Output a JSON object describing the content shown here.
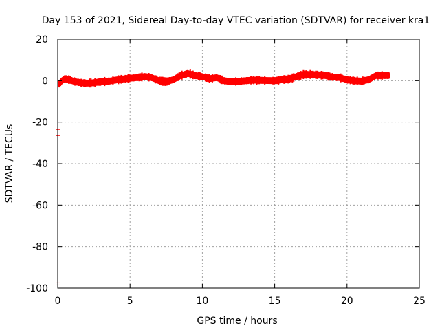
{
  "chart_data": {
    "type": "scatter",
    "title": "Day 153 of 2021, Sidereal Day-to-day VTEC variation (SDTVAR) for receiver kra1",
    "xlabel": "GPS time / hours",
    "ylabel": "SDTVAR / TECUs",
    "xlim": [
      0,
      25
    ],
    "ylim": [
      -100,
      20
    ],
    "xticks": [
      0,
      5,
      10,
      15,
      20,
      25
    ],
    "yticks": [
      20,
      0,
      -20,
      -40,
      -60,
      -80,
      -100
    ],
    "xtick_labels": [
      "0",
      "5",
      "10",
      "15",
      "20",
      "25"
    ],
    "ytick_labels": [
      "20",
      "0",
      "-20",
      "-40",
      "-60",
      "-80",
      "-100"
    ],
    "grid": true,
    "series": [
      {
        "name": "SDTVAR",
        "color": "#ff0000",
        "band_halfwidth": 1.3,
        "x": [
          0.1,
          0.3,
          0.5,
          0.8,
          1.2,
          1.6,
          2.0,
          2.5,
          3.0,
          3.5,
          4.0,
          4.5,
          5.0,
          5.5,
          6.0,
          6.5,
          7.0,
          7.5,
          8.0,
          8.5,
          9.0,
          9.5,
          10.0,
          10.5,
          11.0,
          11.5,
          12.0,
          12.5,
          13.0,
          13.5,
          14.0,
          14.5,
          15.0,
          15.5,
          16.0,
          16.5,
          17.0,
          17.5,
          18.0,
          18.5,
          19.0,
          19.5,
          20.0,
          20.5,
          21.0,
          21.5,
          22.0,
          22.5,
          22.9
        ],
        "y": [
          -1.5,
          0.0,
          1.0,
          0.5,
          -0.5,
          -1.0,
          -1.2,
          -1.0,
          -0.5,
          -0.3,
          0.3,
          0.8,
          1.2,
          1.5,
          2.0,
          1.5,
          0.0,
          -0.5,
          0.5,
          2.5,
          3.5,
          2.5,
          2.0,
          1.0,
          1.5,
          0.0,
          -0.5,
          -0.3,
          0.0,
          0.3,
          0.2,
          0.1,
          0.0,
          0.5,
          0.8,
          2.0,
          3.0,
          3.0,
          2.8,
          2.5,
          1.8,
          1.5,
          0.5,
          0.0,
          -0.2,
          0.5,
          2.5,
          2.5,
          2.5
        ]
      }
    ],
    "outliers": [
      {
        "x": 0.0,
        "y": -25.0,
        "error": 1.5
      },
      {
        "x": 0.0,
        "y": -98.0,
        "error": 0.5
      }
    ]
  }
}
